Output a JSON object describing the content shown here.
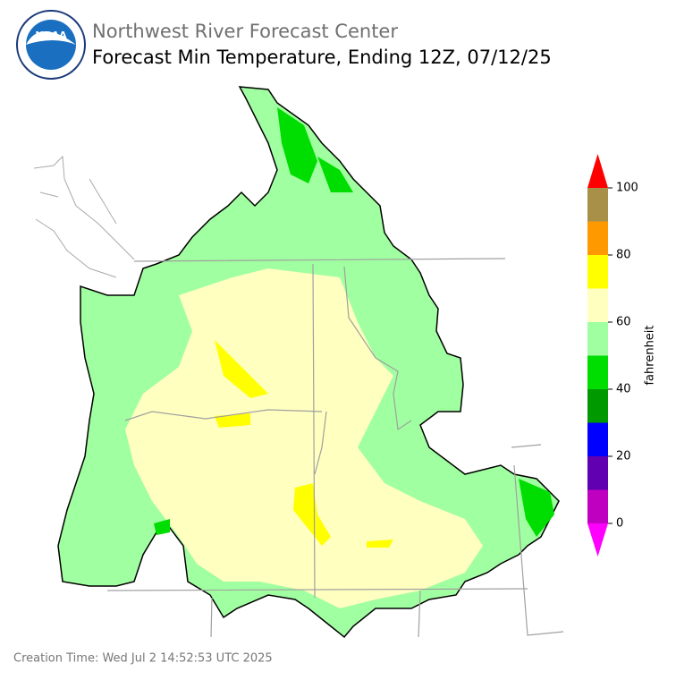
{
  "header": {
    "agency": "Northwest River Forecast Center",
    "title": "Forecast Min Temperature, Ending 12Z, 07/12/25",
    "logo_text": "NOAA"
  },
  "colorbar": {
    "label": "fahrenheit",
    "lim": [
      0,
      100
    ],
    "ticks": [
      0,
      20,
      40,
      60,
      80,
      100
    ],
    "colors": [
      "#c000c0",
      "#6000b0",
      "#0000ff",
      "#009900",
      "#00dd00",
      "#a0ffa0",
      "#ffffc0",
      "#ffff00",
      "#ff9900",
      "#a89048"
    ],
    "under": "#ff00ff",
    "over": "#ff0000"
  },
  "footer": {
    "creation_time": "Creation Time: Wed Jul 2 14:52:53 UTC 2025"
  }
}
